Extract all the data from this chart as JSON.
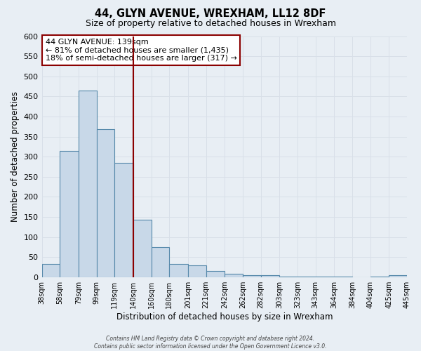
{
  "title": "44, GLYN AVENUE, WREXHAM, LL12 8DF",
  "subtitle": "Size of property relative to detached houses in Wrexham",
  "xlabel": "Distribution of detached houses by size in Wrexham",
  "ylabel": "Number of detached properties",
  "bar_color": "#c8d8e8",
  "bar_edge_color": "#5588aa",
  "background_color": "#e8eef4",
  "grid_color": "#d8dfe8",
  "bin_edges": [
    38,
    58,
    79,
    99,
    119,
    140,
    160,
    180,
    201,
    221,
    242,
    262,
    282,
    303,
    323,
    343,
    364,
    384,
    404,
    425,
    445
  ],
  "bar_heights": [
    32,
    315,
    465,
    368,
    285,
    143,
    75,
    32,
    29,
    15,
    8,
    5,
    4,
    2,
    1,
    1,
    1,
    0,
    1,
    5
  ],
  "tick_labels": [
    "38sqm",
    "58sqm",
    "79sqm",
    "99sqm",
    "119sqm",
    "140sqm",
    "160sqm",
    "180sqm",
    "201sqm",
    "221sqm",
    "242sqm",
    "262sqm",
    "282sqm",
    "303sqm",
    "323sqm",
    "343sqm",
    "364sqm",
    "384sqm",
    "404sqm",
    "425sqm",
    "445sqm"
  ],
  "ylim": [
    0,
    600
  ],
  "yticks": [
    0,
    50,
    100,
    150,
    200,
    250,
    300,
    350,
    400,
    450,
    500,
    550,
    600
  ],
  "vline_x": 140,
  "vline_color": "#8b0000",
  "annotation_title": "44 GLYN AVENUE: 139sqm",
  "annotation_line1": "← 81% of detached houses are smaller (1,435)",
  "annotation_line2": "18% of semi-detached houses are larger (317) →",
  "annotation_box_color": "#ffffff",
  "annotation_border_color": "#8b0000",
  "footer_line1": "Contains HM Land Registry data © Crown copyright and database right 2024.",
  "footer_line2": "Contains public sector information licensed under the Open Government Licence v3.0."
}
